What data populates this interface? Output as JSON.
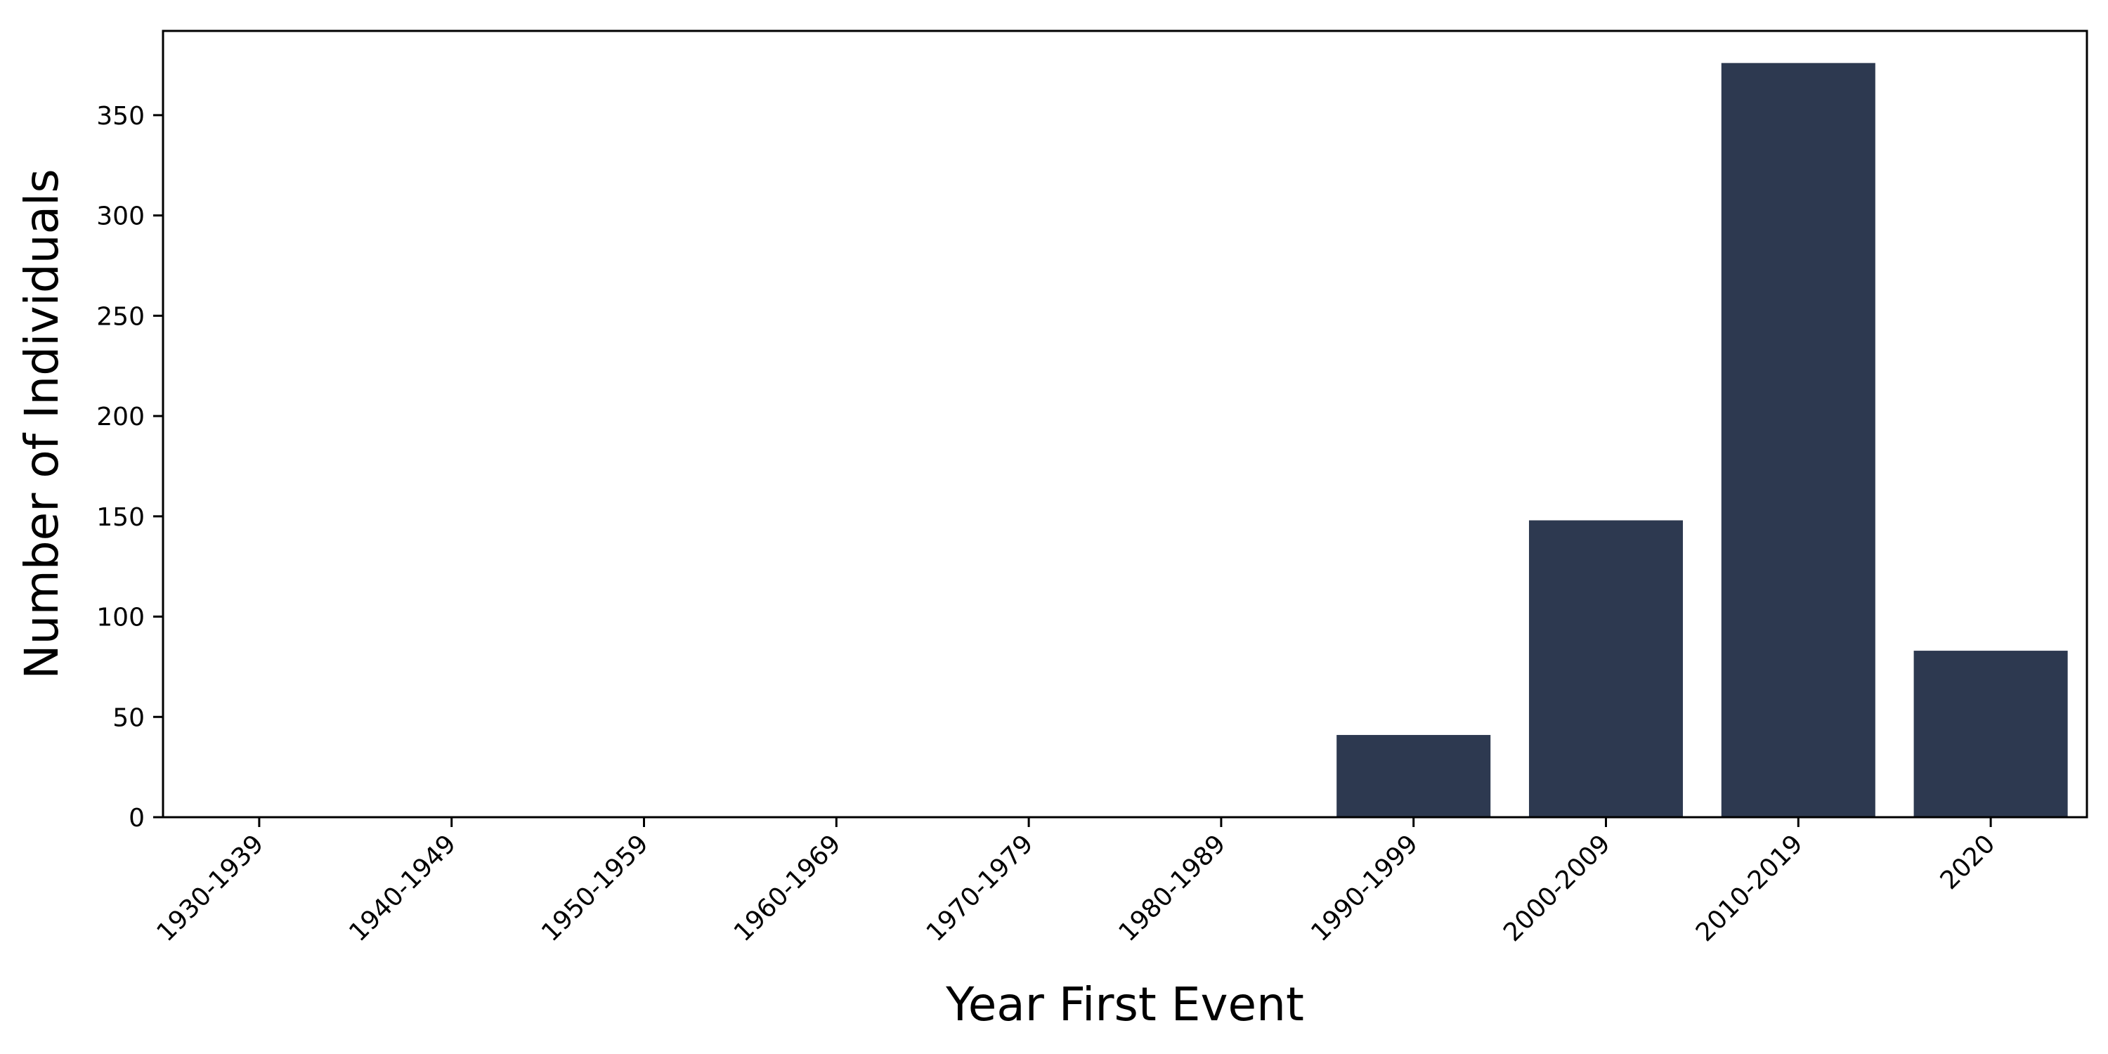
{
  "chart_data": {
    "type": "bar",
    "categories": [
      "1930-1939",
      "1940-1949",
      "1950-1959",
      "1960-1969",
      "1970-1979",
      "1980-1989",
      "1990-1999",
      "2000-2009",
      "2010-2019",
      "2020"
    ],
    "values": [
      0,
      0,
      0,
      0,
      0,
      0,
      41,
      148,
      376,
      83
    ],
    "title": "",
    "xlabel": "Year First Event",
    "ylabel": "Number of Individuals",
    "ylim": [
      0,
      392
    ],
    "yticks": [
      0,
      50,
      100,
      150,
      200,
      250,
      300,
      350
    ],
    "grid": false,
    "bar_color": "#2d3950",
    "frame_color": "#000000"
  }
}
